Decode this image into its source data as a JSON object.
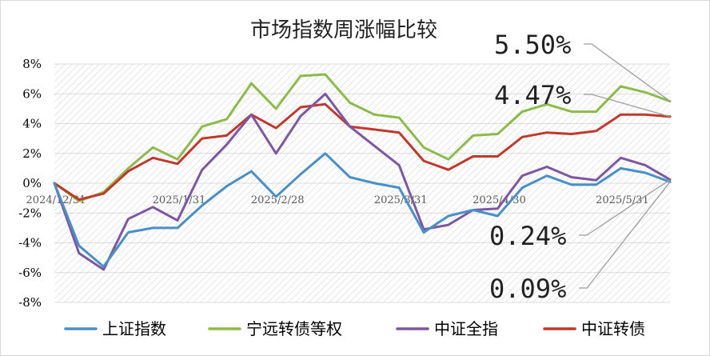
{
  "chart_data": {
    "type": "line",
    "title": "市场指数周涨幅比较",
    "ylim": [
      -8,
      8
    ],
    "y_ticks": [
      "8%",
      "6%",
      "4%",
      "2%",
      "0%",
      "-2%",
      "-4%",
      "-6%",
      "-8%"
    ],
    "x_labels": [
      "2024/12/31",
      "2025/1/31",
      "2025/2/28",
      "2025/3/31",
      "2025/4/30",
      "2025/5/31"
    ],
    "x_label_week_index": [
      0,
      5,
      9,
      14,
      18,
      23
    ],
    "grid": "hatched plot area",
    "legend_position": "bottom",
    "series": [
      {
        "name": "上证指数",
        "color": "#4a90c8",
        "values": [
          0,
          -4.2,
          -5.6,
          -3.3,
          -3.0,
          -3.0,
          -1.5,
          -0.2,
          0.8,
          -0.9,
          0.6,
          2.0,
          0.4,
          0.0,
          -0.3,
          -3.3,
          -2.2,
          -1.8,
          -2.2,
          -0.3,
          0.5,
          -0.1,
          -0.1,
          1.0,
          0.7,
          0.09
        ]
      },
      {
        "name": "宁远转债等权",
        "color": "#8dbb4a",
        "values": [
          0,
          -1.2,
          -0.6,
          1.0,
          2.4,
          1.6,
          3.8,
          4.3,
          6.7,
          5.0,
          7.2,
          7.3,
          5.4,
          4.6,
          4.4,
          2.4,
          1.6,
          3.2,
          3.3,
          4.8,
          5.3,
          4.8,
          4.8,
          6.5,
          6.1,
          5.5
        ]
      },
      {
        "name": "中证全指",
        "color": "#7e57a3",
        "values": [
          0,
          -4.7,
          -5.8,
          -2.4,
          -1.6,
          -2.5,
          0.9,
          2.6,
          4.6,
          2.0,
          4.5,
          6.0,
          3.8,
          2.5,
          1.2,
          -3.1,
          -2.8,
          -1.8,
          -1.7,
          0.5,
          1.1,
          0.4,
          0.2,
          1.7,
          1.2,
          0.24
        ]
      },
      {
        "name": "中证转债",
        "color": "#c0392b",
        "values": [
          0,
          -1.1,
          -0.7,
          0.8,
          1.7,
          1.3,
          3.0,
          3.2,
          4.6,
          3.7,
          5.1,
          5.3,
          3.8,
          3.6,
          3.4,
          1.5,
          0.9,
          1.8,
          1.8,
          3.1,
          3.4,
          3.3,
          3.5,
          4.6,
          4.6,
          4.47
        ]
      }
    ],
    "callouts": [
      {
        "text": "5.50%",
        "series": "宁远转债等权"
      },
      {
        "text": "4.47%",
        "series": "中证转债"
      },
      {
        "text": "0.24%",
        "series": "中证全指"
      },
      {
        "text": "0.09%",
        "series": "上证指数"
      }
    ]
  }
}
